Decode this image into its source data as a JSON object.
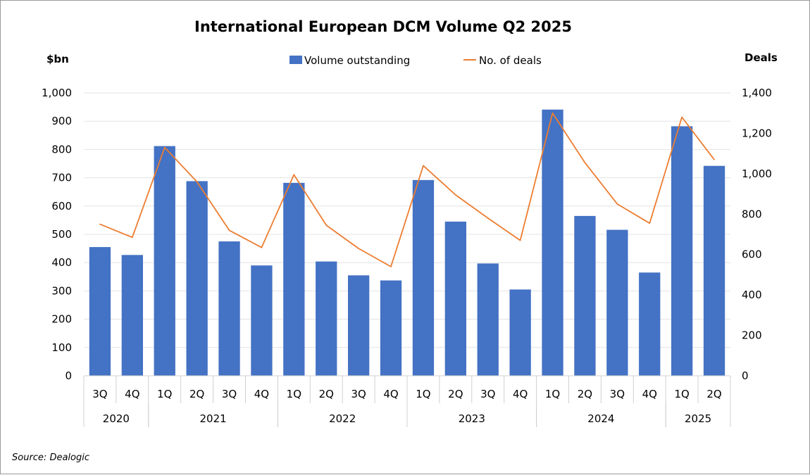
{
  "chart_data": {
    "type": "bar",
    "title": "International European DCM Volume Q2 2025",
    "left_axis_label": "$bn",
    "right_axis_label": "Deals",
    "source": "Source: Dealogic",
    "left_ylim": [
      0,
      1000
    ],
    "left_ticks": [
      "0",
      "100",
      "200",
      "300",
      "400",
      "500",
      "600",
      "700",
      "800",
      "900",
      "1,000"
    ],
    "right_ylim": [
      0,
      1400
    ],
    "right_ticks": [
      "0",
      "200",
      "400",
      "600",
      "800",
      "1,000",
      "1,200",
      "1,400"
    ],
    "categories": [
      "3Q",
      "4Q",
      "1Q",
      "2Q",
      "3Q",
      "4Q",
      "1Q",
      "2Q",
      "3Q",
      "4Q",
      "1Q",
      "2Q",
      "3Q",
      "4Q",
      "1Q",
      "2Q",
      "3Q",
      "4Q",
      "1Q",
      "2Q"
    ],
    "year_groups": [
      {
        "label": "2020",
        "count": 2
      },
      {
        "label": "2021",
        "count": 4
      },
      {
        "label": "2022",
        "count": 4
      },
      {
        "label": "2023",
        "count": 4
      },
      {
        "label": "2024",
        "count": 4
      },
      {
        "label": "2025",
        "count": 2
      }
    ],
    "series": [
      {
        "name": "Volume outstanding",
        "kind": "bar",
        "axis": "left",
        "color": "#4472C4",
        "values": [
          455,
          427,
          812,
          688,
          475,
          390,
          682,
          404,
          355,
          337,
          692,
          545,
          397,
          305,
          941,
          565,
          516,
          365,
          882,
          742
        ]
      },
      {
        "name": "No. of deals",
        "kind": "line",
        "axis": "right",
        "color": "#ED7D31",
        "values": [
          750,
          685,
          1130,
          960,
          720,
          635,
          995,
          745,
          630,
          540,
          1040,
          895,
          780,
          670,
          1300,
          1055,
          850,
          755,
          1280,
          1070
        ]
      }
    ],
    "legend": "top-center",
    "grid": true
  }
}
